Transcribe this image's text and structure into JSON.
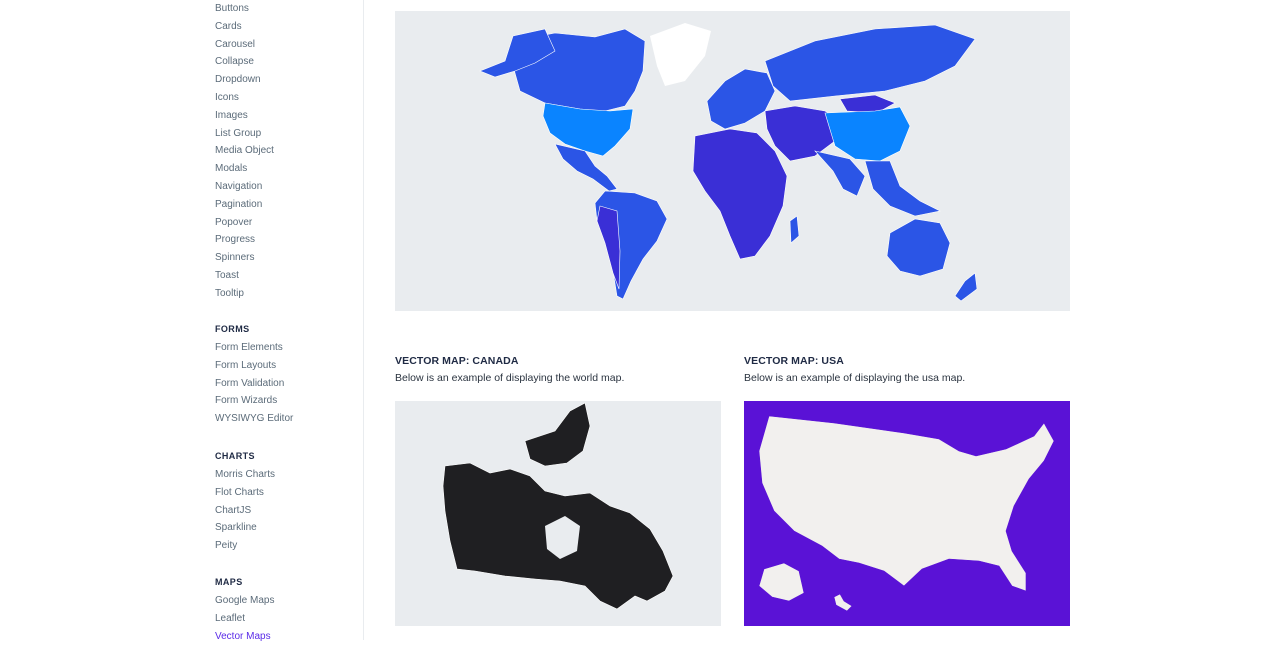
{
  "sidebar": {
    "components_items": [
      "Buttons",
      "Cards",
      "Carousel",
      "Collapse",
      "Dropdown",
      "Icons",
      "Images",
      "List Group",
      "Media Object",
      "Modals",
      "Navigation",
      "Pagination",
      "Popover",
      "Progress",
      "Spinners",
      "Toast",
      "Tooltip"
    ],
    "forms": {
      "heading": "FORMS",
      "items": [
        "Form Elements",
        "Form Layouts",
        "Form Validation",
        "Form Wizards",
        "WYSIWYG Editor"
      ]
    },
    "charts": {
      "heading": "CHARTS",
      "items": [
        "Morris Charts",
        "Flot Charts",
        "ChartJS",
        "Sparkline",
        "Peity"
      ]
    },
    "maps": {
      "heading": "MAPS",
      "items": [
        "Google Maps",
        "Leaflet",
        "Vector Maps"
      ],
      "active": "Vector Maps"
    }
  },
  "main": {
    "world_map": {
      "background": "#e9ecef",
      "land_color": "#2b55e6",
      "highlight_color": "#0a84ff",
      "dark_color": "#3a2fd6"
    },
    "canada": {
      "title": "VECTOR MAP: CANADA",
      "description": "Below is an example of displaying the world map.",
      "background": "#e9ecef",
      "land_color": "#1f1f22"
    },
    "usa": {
      "title": "VECTOR MAP: USA",
      "description": "Below is an example of displaying the usa map.",
      "background": "#5a12d6",
      "land_color": "#f2f0ee"
    }
  }
}
